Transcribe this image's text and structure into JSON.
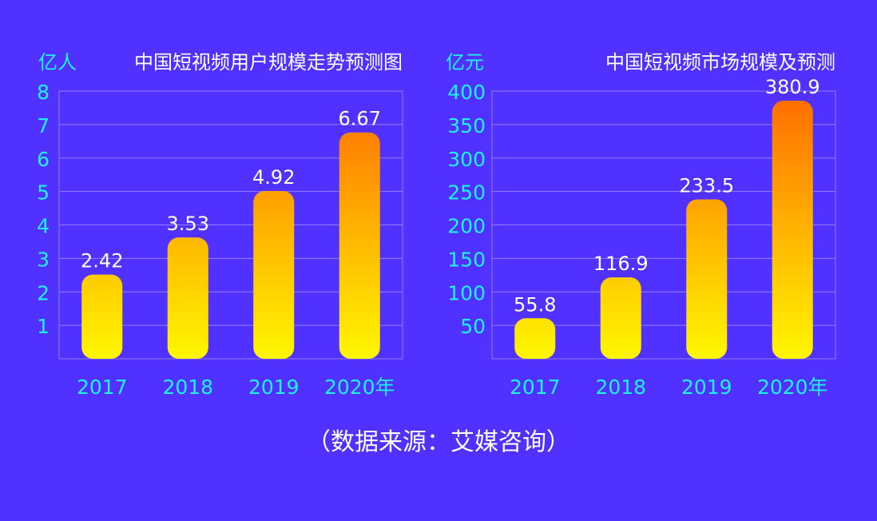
{
  "chart_data": [
    {
      "type": "bar",
      "title": "中国短视频用户规模走势预测图",
      "ylabel": "亿人",
      "xlabel": "",
      "categories": [
        "2017",
        "2018",
        "2019",
        "2020年"
      ],
      "values": [
        2.42,
        3.53,
        4.92,
        6.67
      ],
      "data_labels": [
        "2.42",
        "3.53",
        "4.92",
        "6.67"
      ],
      "ylim": [
        0,
        8
      ],
      "yticks": [
        "1",
        "2",
        "3",
        "4",
        "5",
        "6",
        "7",
        "8"
      ],
      "grid": true
    },
    {
      "type": "bar",
      "title": "中国短视频市场规模及预测",
      "ylabel": "亿元",
      "xlabel": "",
      "categories": [
        "2017",
        "2018",
        "2019",
        "2020年"
      ],
      "values": [
        55.8,
        116.9,
        233.5,
        380.9
      ],
      "data_labels": [
        "55.8",
        "116.9",
        "233.5",
        "380.9"
      ],
      "ylim": [
        0,
        400
      ],
      "yticks": [
        "50",
        "100",
        "150",
        "200",
        "250",
        "300",
        "350",
        "400"
      ],
      "grid": true
    }
  ],
  "source": "（数据来源：艾媒咨询）",
  "colors": {
    "background": "#5131ff",
    "axis_text": "#1ef2f2",
    "grid": "#8f80ff",
    "bar_top": "#ff6a00",
    "bar_bottom": "#fff700"
  }
}
